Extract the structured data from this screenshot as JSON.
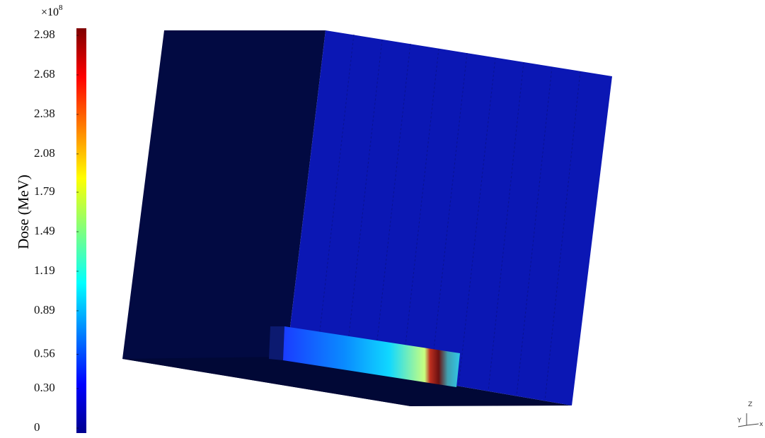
{
  "colorbar": {
    "label": "Dose (MeV)",
    "multiplier": "×10",
    "exponent": 8,
    "lim": [
      0,
      2.98
    ],
    "ticks": [
      0,
      {
        "value": 0.3,
        "label": "0.30"
      },
      0.56,
      0.89,
      1.19,
      1.49,
      1.79,
      2.08,
      2.38,
      2.68,
      2.98
    ]
  },
  "axes_triad": {
    "z": "Z",
    "y": "Y",
    "x": "x"
  }
}
